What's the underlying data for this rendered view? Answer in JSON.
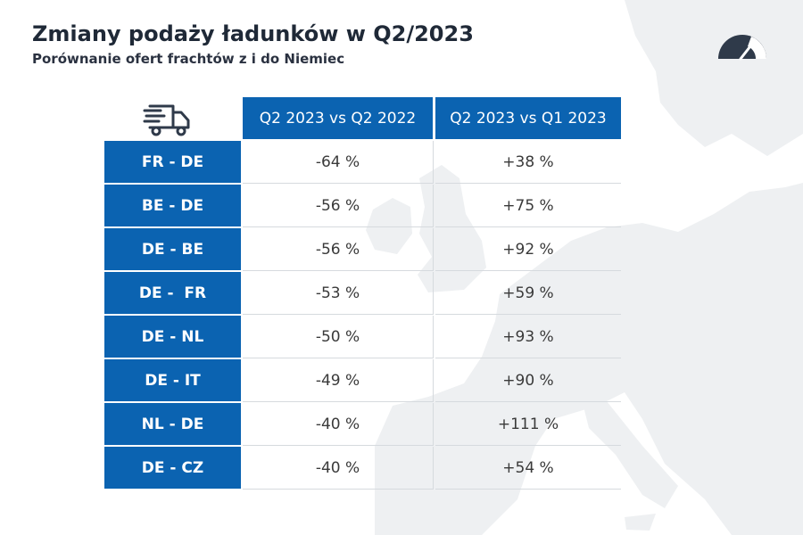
{
  "header": {
    "title": "Zmiany podaży ładunków w Q2/2023",
    "subtitle": "Porównanie ofert frachtów z i do Niemiec"
  },
  "icons": {
    "truck": "truck-icon",
    "gauge": "gauge-icon",
    "background": "europe-map"
  },
  "colors": {
    "accent": "#0b63b1",
    "dark": "#2f3a4a",
    "map": "#eef0f2"
  },
  "chart_data": {
    "type": "table",
    "columns": [
      "Q2 2023 vs Q2 2022",
      "Q2 2023 vs Q1 2023"
    ],
    "rows": [
      {
        "label": "FR - DE",
        "values": [
          "-64 %",
          "+38 %"
        ]
      },
      {
        "label": "BE - DE",
        "values": [
          "-56 %",
          "+75 %"
        ]
      },
      {
        "label": "DE - BE",
        "values": [
          "-56 %",
          "+92 %"
        ]
      },
      {
        "label": "DE -  FR",
        "values": [
          "-53 %",
          "+59 %"
        ]
      },
      {
        "label": "DE - NL",
        "values": [
          "-50 %",
          "+93 %"
        ]
      },
      {
        "label": "DE - IT",
        "values": [
          "-49 %",
          "+90 %"
        ]
      },
      {
        "label": "NL - DE",
        "values": [
          "-40 %",
          "+111 %"
        ]
      },
      {
        "label": "DE - CZ",
        "values": [
          "-40 %",
          "+54 %"
        ]
      }
    ]
  }
}
